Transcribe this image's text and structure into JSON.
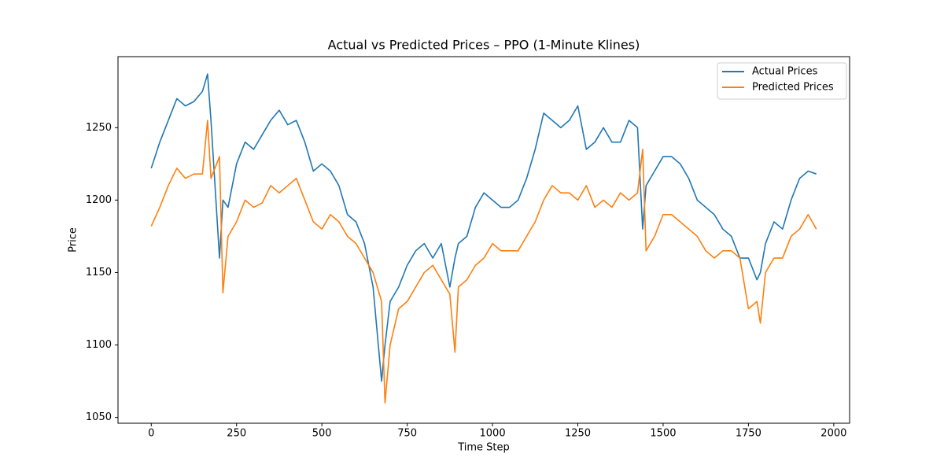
{
  "chart_data": {
    "type": "line",
    "title": "Actual vs Predicted Prices – PPO (1-Minute Klines)",
    "x_label": "Time Step",
    "y_label": "Price",
    "x": [
      0,
      25,
      50,
      75,
      100,
      125,
      150,
      165,
      175,
      200,
      210,
      225,
      250,
      275,
      300,
      325,
      350,
      375,
      400,
      425,
      450,
      475,
      500,
      525,
      550,
      575,
      600,
      625,
      650,
      675,
      685,
      700,
      725,
      750,
      775,
      800,
      825,
      850,
      875,
      890,
      900,
      925,
      950,
      975,
      1000,
      1025,
      1050,
      1075,
      1100,
      1125,
      1150,
      1175,
      1200,
      1225,
      1250,
      1275,
      1300,
      1325,
      1350,
      1375,
      1400,
      1425,
      1440,
      1450,
      1475,
      1500,
      1525,
      1550,
      1575,
      1600,
      1625,
      1650,
      1675,
      1700,
      1725,
      1750,
      1775,
      1785,
      1800,
      1825,
      1850,
      1875,
      1900,
      1925,
      1949
    ],
    "series": [
      {
        "name": "Actual Prices",
        "color": "#1f77b4",
        "values": [
          1222,
          1240,
          1255,
          1270,
          1265,
          1268,
          1275,
          1287,
          1255,
          1160,
          1200,
          1195,
          1225,
          1240,
          1235,
          1245,
          1255,
          1262,
          1252,
          1255,
          1240,
          1220,
          1225,
          1220,
          1210,
          1190,
          1185,
          1170,
          1140,
          1075,
          1100,
          1130,
          1140,
          1155,
          1165,
          1170,
          1160,
          1170,
          1140,
          1160,
          1170,
          1175,
          1195,
          1205,
          1200,
          1195,
          1195,
          1200,
          1215,
          1235,
          1260,
          1255,
          1250,
          1255,
          1265,
          1235,
          1240,
          1250,
          1240,
          1240,
          1255,
          1250,
          1180,
          1210,
          1220,
          1230,
          1230,
          1225,
          1215,
          1200,
          1195,
          1190,
          1180,
          1175,
          1160,
          1160,
          1145,
          1150,
          1170,
          1185,
          1180,
          1200,
          1215,
          1220,
          1218
        ]
      },
      {
        "name": "Predicted Prices",
        "color": "#ff7f0e",
        "values": [
          1182,
          1195,
          1210,
          1222,
          1215,
          1218,
          1218,
          1255,
          1215,
          1230,
          1136,
          1175,
          1185,
          1200,
          1195,
          1198,
          1210,
          1205,
          1210,
          1215,
          1200,
          1185,
          1180,
          1190,
          1185,
          1175,
          1170,
          1160,
          1150,
          1130,
          1060,
          1100,
          1125,
          1130,
          1140,
          1150,
          1155,
          1145,
          1135,
          1095,
          1140,
          1145,
          1155,
          1160,
          1170,
          1165,
          1165,
          1165,
          1175,
          1185,
          1200,
          1210,
          1205,
          1205,
          1200,
          1210,
          1195,
          1200,
          1195,
          1205,
          1200,
          1205,
          1235,
          1165,
          1175,
          1190,
          1190,
          1185,
          1180,
          1175,
          1165,
          1160,
          1165,
          1165,
          1160,
          1125,
          1130,
          1115,
          1150,
          1160,
          1160,
          1175,
          1180,
          1190,
          1180
        ]
      }
    ],
    "xlim": [
      -97.45,
      2046.45
    ],
    "ylim": [
      1046,
      1299
    ],
    "xticks": [
      0,
      250,
      500,
      750,
      1000,
      1250,
      1500,
      1750,
      2000
    ],
    "yticks": [
      1050,
      1100,
      1150,
      1200,
      1250
    ],
    "grid": false,
    "legend": "upper right"
  }
}
